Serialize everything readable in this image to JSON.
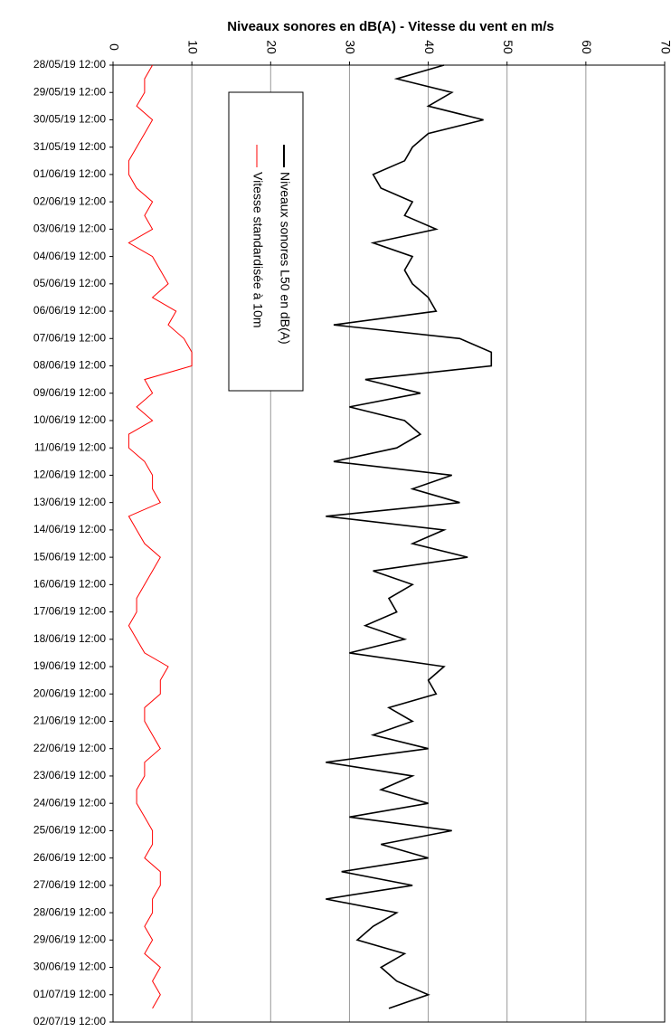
{
  "chart_data": {
    "type": "line",
    "orientation": "horizontal",
    "title": "Niveaux sonores en dB(A)  - Vitesse du vent en m/s",
    "categories": [
      "28/05/19 12:00",
      null,
      "29/05/19 12:00",
      null,
      "30/05/19 12:00",
      null,
      "31/05/19 12:00",
      null,
      "01/06/19 12:00",
      null,
      "02/06/19 12:00",
      null,
      "03/06/19 12:00",
      null,
      "04/06/19 12:00",
      null,
      "05/06/19 12:00",
      null,
      "06/06/19 12:00",
      null,
      "07/06/19 12:00",
      null,
      "08/06/19 12:00",
      null,
      "09/06/19 12:00",
      null,
      "10/06/19 12:00",
      null,
      "11/06/19 12:00",
      null,
      "12/06/19 12:00",
      null,
      "13/06/19 12:00",
      null,
      "14/06/19 12:00",
      null,
      "15/06/19 12:00",
      null,
      "16/06/19 12:00",
      null,
      "17/06/19 12:00",
      null,
      "18/06/19 12:00",
      null,
      "19/06/19 12:00",
      null,
      "20/06/19 12:00",
      null,
      "21/06/19 12:00",
      null,
      "22/06/19 12:00",
      null,
      "23/06/19 12:00",
      null,
      "24/06/19 12:00",
      null,
      "25/06/19 12:00",
      null,
      "26/06/19 12:00",
      null,
      "27/06/19 12:00",
      null,
      "28/06/19 12:00",
      null,
      "29/06/19 12:00",
      null,
      "30/06/19 12:00",
      null,
      "01/07/19 12:00",
      null,
      "02/07/19 12:00"
    ],
    "series": [
      {
        "name": "Niveaux sonores L50 en dB(A)",
        "color": "#000000",
        "values": [
          42,
          36,
          43,
          40,
          47,
          40,
          38,
          37,
          33,
          34,
          38,
          37,
          41,
          33,
          38,
          37,
          38,
          40,
          41,
          28,
          44,
          48,
          48,
          32,
          39,
          30,
          37,
          39,
          36,
          28,
          43,
          38,
          44,
          27,
          42,
          38,
          45,
          33,
          38,
          35,
          36,
          32,
          37,
          30,
          42,
          40,
          41,
          35,
          38,
          33,
          40,
          27,
          38,
          34,
          40,
          30,
          43,
          34,
          40,
          29,
          38,
          27,
          36,
          33,
          31,
          37,
          34,
          36,
          40,
          35,
          null
        ]
      },
      {
        "name": "Vitesse standardisée à 10m",
        "color": "#ff0000",
        "values": [
          5,
          4,
          4,
          3,
          5,
          4,
          3,
          2,
          2,
          3,
          5,
          4,
          5,
          2,
          5,
          6,
          7,
          5,
          8,
          7,
          9,
          10,
          10,
          4,
          5,
          3,
          5,
          2,
          2,
          4,
          5,
          5,
          6,
          2,
          3,
          4,
          6,
          5,
          4,
          3,
          3,
          2,
          3,
          4,
          7,
          6,
          6,
          4,
          4,
          5,
          6,
          4,
          4,
          3,
          3,
          4,
          5,
          5,
          4,
          6,
          6,
          5,
          5,
          4,
          5,
          4,
          6,
          5,
          6,
          5,
          null
        ]
      }
    ],
    "xlim": [
      0,
      70
    ],
    "xticks": [
      0,
      10,
      20,
      30,
      40,
      50,
      60,
      70
    ],
    "grid": true
  }
}
